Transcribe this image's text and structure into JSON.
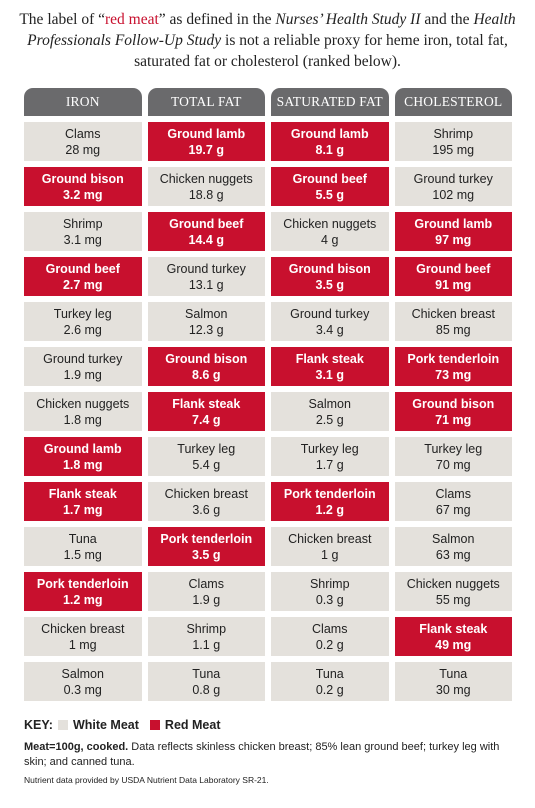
{
  "intro": {
    "p1": "The label of “",
    "red_term": "red meat",
    "p2": "” as defined in the ",
    "study1": "Nurses’ Health Study II",
    "p3": " and the ",
    "study2": "Health Professionals Follow-Up Study",
    "p4": " is not a reliable proxy for heme iron, total fat, saturated fat or cholesterol (ranked below)."
  },
  "colors": {
    "red_meat": "#c8102e",
    "white_meat": "#e4e1dc",
    "header": "#6a6a6c"
  },
  "chart_data": {
    "type": "table",
    "columns": [
      "IRON",
      "TOTAL FAT",
      "SATURATED FAT",
      "CHOLESTEROL"
    ],
    "rows": [
      [
        {
          "food": "Clams",
          "value": "28 mg",
          "red": false
        },
        {
          "food": "Ground lamb",
          "value": "19.7 g",
          "red": true
        },
        {
          "food": "Ground lamb",
          "value": "8.1 g",
          "red": true
        },
        {
          "food": "Shrimp",
          "value": "195 mg",
          "red": false
        }
      ],
      [
        {
          "food": "Ground bison",
          "value": "3.2 mg",
          "red": true
        },
        {
          "food": "Chicken nuggets",
          "value": "18.8 g",
          "red": false
        },
        {
          "food": "Ground beef",
          "value": "5.5 g",
          "red": true
        },
        {
          "food": "Ground turkey",
          "value": "102 mg",
          "red": false
        }
      ],
      [
        {
          "food": "Shrimp",
          "value": "3.1 mg",
          "red": false
        },
        {
          "food": "Ground beef",
          "value": "14.4 g",
          "red": true
        },
        {
          "food": "Chicken nuggets",
          "value": "4 g",
          "red": false
        },
        {
          "food": "Ground lamb",
          "value": "97 mg",
          "red": true
        }
      ],
      [
        {
          "food": "Ground beef",
          "value": "2.7 mg",
          "red": true
        },
        {
          "food": "Ground turkey",
          "value": "13.1 g",
          "red": false
        },
        {
          "food": "Ground bison",
          "value": "3.5 g",
          "red": true
        },
        {
          "food": "Ground beef",
          "value": "91 mg",
          "red": true
        }
      ],
      [
        {
          "food": "Turkey leg",
          "value": "2.6 mg",
          "red": false
        },
        {
          "food": "Salmon",
          "value": "12.3 g",
          "red": false
        },
        {
          "food": "Ground turkey",
          "value": "3.4 g",
          "red": false
        },
        {
          "food": "Chicken breast",
          "value": "85 mg",
          "red": false
        }
      ],
      [
        {
          "food": "Ground turkey",
          "value": "1.9 mg",
          "red": false
        },
        {
          "food": "Ground bison",
          "value": "8.6 g",
          "red": true
        },
        {
          "food": "Flank steak",
          "value": "3.1 g",
          "red": true
        },
        {
          "food": "Pork tenderloin",
          "value": "73 mg",
          "red": true
        }
      ],
      [
        {
          "food": "Chicken nuggets",
          "value": "1.8 mg",
          "red": false
        },
        {
          "food": "Flank steak",
          "value": "7.4 g",
          "red": true
        },
        {
          "food": "Salmon",
          "value": "2.5 g",
          "red": false
        },
        {
          "food": "Ground bison",
          "value": "71 mg",
          "red": true
        }
      ],
      [
        {
          "food": "Ground lamb",
          "value": "1.8 mg",
          "red": true
        },
        {
          "food": "Turkey leg",
          "value": "5.4 g",
          "red": false
        },
        {
          "food": "Turkey leg",
          "value": "1.7 g",
          "red": false
        },
        {
          "food": "Turkey leg",
          "value": "70 mg",
          "red": false
        }
      ],
      [
        {
          "food": "Flank steak",
          "value": "1.7 mg",
          "red": true
        },
        {
          "food": "Chicken breast",
          "value": "3.6 g",
          "red": false
        },
        {
          "food": "Pork tenderloin",
          "value": "1.2 g",
          "red": true
        },
        {
          "food": "Clams",
          "value": "67 mg",
          "red": false
        }
      ],
      [
        {
          "food": "Tuna",
          "value": "1.5 mg",
          "red": false
        },
        {
          "food": "Pork tenderloin",
          "value": "3.5 g",
          "red": true
        },
        {
          "food": "Chicken breast",
          "value": "1 g",
          "red": false
        },
        {
          "food": "Salmon",
          "value": "63 mg",
          "red": false
        }
      ],
      [
        {
          "food": "Pork tenderloin",
          "value": "1.2 mg",
          "red": true
        },
        {
          "food": "Clams",
          "value": "1.9 g",
          "red": false
        },
        {
          "food": "Shrimp",
          "value": "0.3 g",
          "red": false
        },
        {
          "food": "Chicken nuggets",
          "value": "55 mg",
          "red": false
        }
      ],
      [
        {
          "food": "Chicken breast",
          "value": "1 mg",
          "red": false
        },
        {
          "food": "Shrimp",
          "value": "1.1 g",
          "red": false
        },
        {
          "food": "Clams",
          "value": "0.2 g",
          "red": false
        },
        {
          "food": "Flank steak",
          "value": "49 mg",
          "red": true
        }
      ],
      [
        {
          "food": "Salmon",
          "value": "0.3 mg",
          "red": false
        },
        {
          "food": "Tuna",
          "value": "0.8 g",
          "red": false
        },
        {
          "food": "Tuna",
          "value": "0.2 g",
          "red": false
        },
        {
          "food": "Tuna",
          "value": "30 mg",
          "red": false
        }
      ]
    ]
  },
  "key": {
    "label": "KEY:",
    "white": "White Meat",
    "red": "Red Meat"
  },
  "note": {
    "bold": "Meat=100g, cooked.",
    "rest": " Data reflects skinless chicken breast; 85% lean ground beef; turkey leg with skin; and canned tuna."
  },
  "source": "Nutrient data provided by USDA Nutrient Data Laboratory SR-21."
}
